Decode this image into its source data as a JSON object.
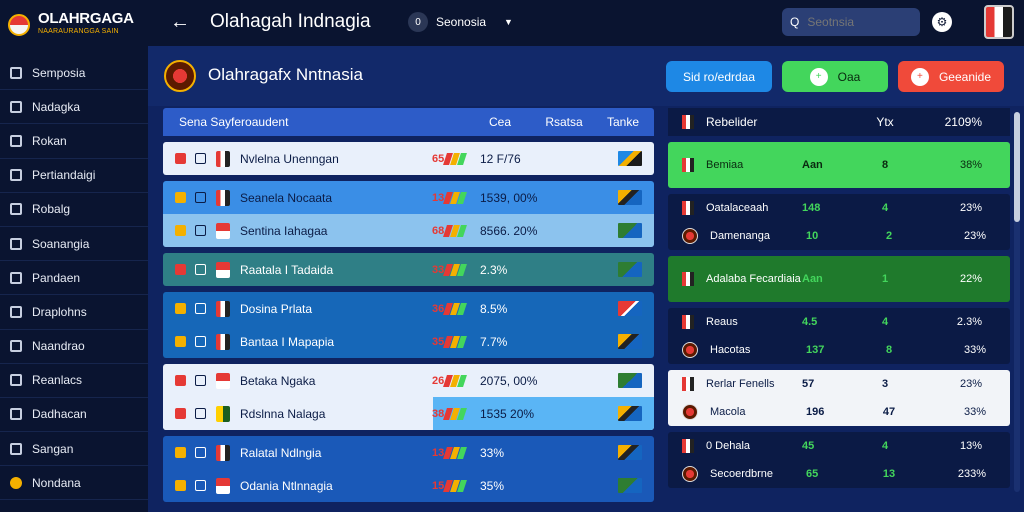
{
  "brand": {
    "title": "OLAHRGAGA",
    "subtitle": "NAARAURANGGA SAIN"
  },
  "sidebar": {
    "items": [
      {
        "label": "Semposia",
        "icon": "person-icon"
      },
      {
        "label": "Nadagka",
        "icon": "edit-icon"
      },
      {
        "label": "Rokan",
        "icon": "calendar-icon"
      },
      {
        "label": "Pertiandaigi",
        "icon": "trophy-icon"
      },
      {
        "label": "Robalg",
        "icon": "bookmark-icon"
      },
      {
        "label": "Soanangia",
        "icon": "mail-icon"
      },
      {
        "label": "Pandaen",
        "icon": "grid-icon"
      },
      {
        "label": "Draplohns",
        "icon": "folder-icon"
      },
      {
        "label": "Naandrao",
        "icon": "diamond-icon"
      },
      {
        "label": "Reanlacs",
        "icon": "gear-icon"
      },
      {
        "label": "Dadhacan",
        "icon": "chart-icon"
      },
      {
        "label": "Sangan",
        "icon": "list-icon"
      },
      {
        "label": "Nondana",
        "icon": "power-icon"
      }
    ]
  },
  "topbar": {
    "back": "←",
    "title": "Olahagah Indnagia",
    "region_label": "Seonosia",
    "region_mark": "0",
    "search_placeholder": "Seotnsia",
    "settings_icon": "⚙"
  },
  "header": {
    "title": "Olahragafx Nntnasia",
    "btn_blue": "Sid ro/edrdaa",
    "btn_green": "Oaa",
    "btn_red": "Geeanide",
    "btn_green_icon": "+",
    "btn_red_icon": "+"
  },
  "matches": {
    "columns": {
      "main": "Sena  Sayferoaudent",
      "c1": "Cea",
      "c2": "Rsatsa",
      "c3": "Tanke"
    },
    "groups": [
      {
        "style": "g-white",
        "rows": [
          {
            "team": "Nvlelna Unenngan",
            "code": "65",
            "pct": "12 F/76",
            "flag": "flag-a",
            "crest": "c1"
          }
        ]
      },
      {
        "style": "g-blue",
        "rows": [
          {
            "team": "Seanela Nocaata",
            "code": "13",
            "pct": "1539, 00%",
            "flag": "flag-b",
            "crest": "c1"
          },
          {
            "team": "Sentina Iahagaa",
            "code": "68",
            "pct": "8566. 20%",
            "flag": "flag-c",
            "crest": "c2"
          }
        ]
      },
      {
        "style": "g-teal",
        "rows": [
          {
            "team": "Raatala I Tadaida",
            "code": "33",
            "pct": "2.3%",
            "flag": "flag-c",
            "crest": "c2"
          }
        ]
      },
      {
        "style": "g-ocean",
        "rows": [
          {
            "team": "Dosina Prlata",
            "code": "36",
            "pct": "8.5%",
            "flag": "flag-d",
            "crest": "c1"
          },
          {
            "team": "Bantaa I Mapapia",
            "code": "35",
            "pct": "7.7%",
            "flag": "flag-b",
            "crest": "c1"
          }
        ]
      },
      {
        "style": "g-mix",
        "rows": [
          {
            "team": "Betaka Ngaka",
            "code": "26",
            "pct": "2075, 00%",
            "flag": "flag-c",
            "crest": "c2"
          },
          {
            "team": "Rdslnna Nalaga",
            "code": "38",
            "pct": "1535 20%",
            "flag": "flag-b",
            "crest": "c3"
          }
        ]
      },
      {
        "style": "g-deep",
        "rows": [
          {
            "team": "Ralatal Ndlngia",
            "code": "13",
            "pct": "33%",
            "flag": "flag-b",
            "crest": "c1"
          },
          {
            "team": "Odania Ntlnnagia",
            "code": "15",
            "pct": "35%",
            "flag": "flag-c",
            "crest": "c2"
          }
        ]
      }
    ]
  },
  "standings": {
    "columns": {
      "team": "Rebelider",
      "a": "",
      "b": "Ytx",
      "c": "2109%"
    },
    "groups": [
      {
        "style": "s-green",
        "rows": [
          {
            "team": "Bemiaa",
            "a": "Aan",
            "b": "8",
            "c": "38%"
          }
        ]
      },
      {
        "style": "",
        "rows": [
          {
            "team": "Oatalaceaah",
            "a": "148",
            "b": "4",
            "c": "23%"
          },
          {
            "team": "Damenanga",
            "a": "10",
            "b": "2",
            "c": "23%"
          }
        ]
      },
      {
        "style": "s-green2",
        "rows": [
          {
            "team": "Adalaba Fecardiaia",
            "a": "Aan",
            "b": "1",
            "c": "22%"
          }
        ]
      },
      {
        "style": "",
        "rows": [
          {
            "team": "Reaus",
            "a": "4.5",
            "b": "4",
            "c": "2.3%"
          },
          {
            "team": "Hacotas",
            "a": "137",
            "b": "8",
            "c": "33%"
          }
        ]
      },
      {
        "style": "s-white",
        "rows": [
          {
            "team": "Rerlar Fenells",
            "a": "57",
            "b": "3",
            "c": "23%"
          },
          {
            "team": "Macola",
            "a": "196",
            "b": "47",
            "c": "33%"
          }
        ]
      },
      {
        "style": "",
        "rows": [
          {
            "team": "0 Dehala",
            "a": "45",
            "b": "4",
            "c": "13%"
          },
          {
            "team": "Secoerdbrne",
            "a": "65",
            "b": "13",
            "c": "233%"
          }
        ]
      }
    ]
  }
}
